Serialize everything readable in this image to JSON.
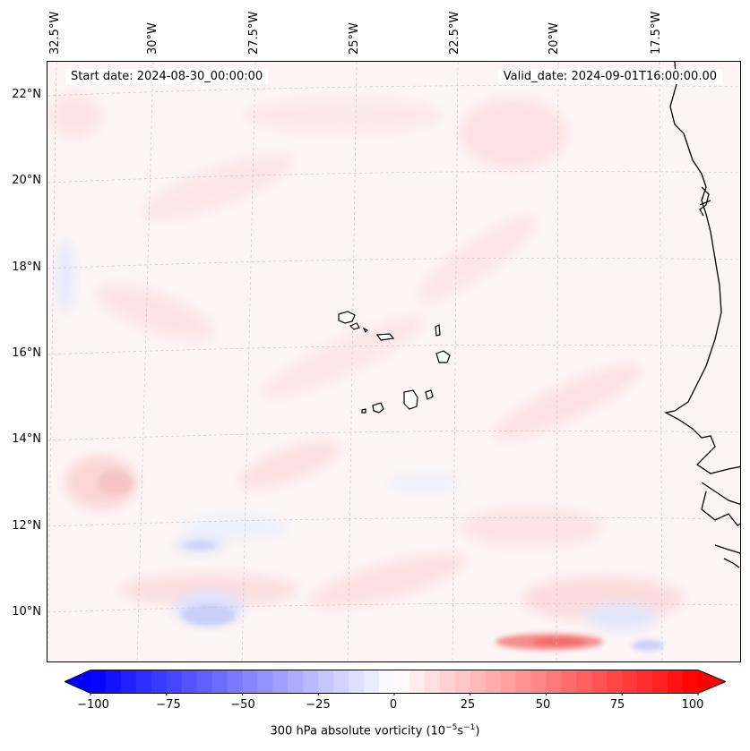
{
  "map": {
    "start_date": "Start date: 2024-08-30_00:00:00",
    "valid_date": "Valid_date: 2024-09-01T16:00:00.00",
    "lon_labels": [
      "32.5°W",
      "30°W",
      "27.5°W",
      "25°W",
      "22.5°W",
      "20°W",
      "17.5°W"
    ],
    "lat_labels": [
      "22°N",
      "20°N",
      "18°N",
      "16°N",
      "14°N",
      "12°N",
      "10°N"
    ],
    "gridline_style": "dashed light gray",
    "colormap": "bwr",
    "land_outline_color": "#000000"
  },
  "colorbar": {
    "ticks": [
      "−100",
      "−75",
      "−50",
      "−25",
      "0",
      "25",
      "50",
      "75",
      "100"
    ],
    "label_main": "300 hPa absolute vorticity (10",
    "label_exp1": "−5",
    "label_mid": "s",
    "label_exp2": "−1",
    "label_end": ")",
    "range": [
      -100,
      100
    ],
    "levels": 40,
    "extend": "both"
  }
}
